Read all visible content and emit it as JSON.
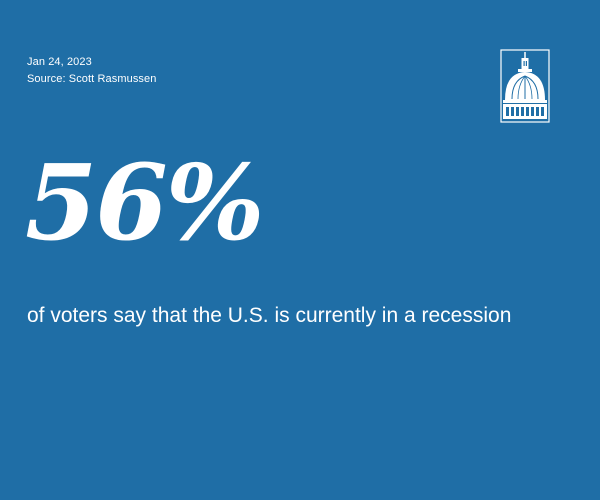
{
  "header": {
    "date": "Jan 24, 2023",
    "source": "Source: Scott Rasmussen"
  },
  "stat": {
    "value": "56%",
    "caption": "of voters say that the U.S. is currently in a recession"
  },
  "logo": {
    "icon": "capitol-dome-icon"
  },
  "colors": {
    "background": "#1f6ea6",
    "text": "#ffffff"
  }
}
